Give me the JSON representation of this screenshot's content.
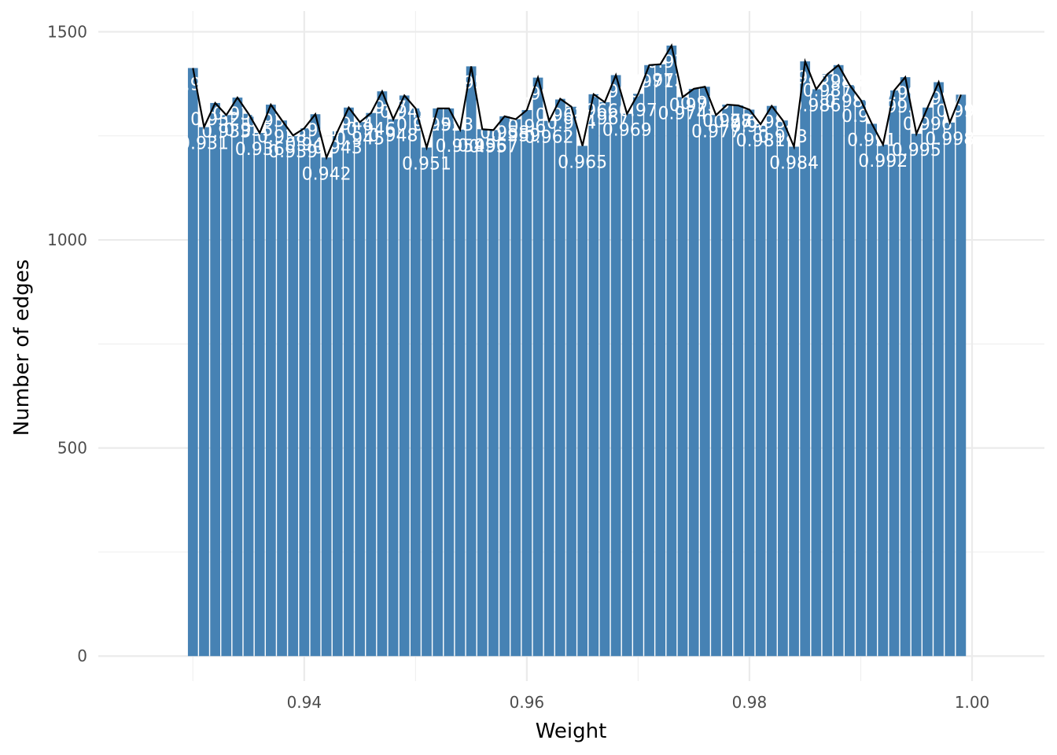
{
  "chart_data": {
    "type": "bar",
    "xlabel": "Weight",
    "ylabel": "Number of edges",
    "xlim": [
      0.9215,
      1.0065
    ],
    "ylim": [
      -60,
      1550
    ],
    "x_ticks": [
      0.94,
      0.96,
      0.98,
      1.0
    ],
    "x_tick_labels": [
      "0.94",
      "0.96",
      "0.98",
      "1.00"
    ],
    "y_ticks": [
      0,
      500,
      1000,
      1500
    ],
    "y_tick_labels": [
      "0",
      "500",
      "1000",
      "1500"
    ],
    "grid": true,
    "bar_color": "#4682b4",
    "line_color": "#000000",
    "x": [
      0.93,
      0.931,
      0.932,
      0.933,
      0.934,
      0.935,
      0.936,
      0.937,
      0.938,
      0.939,
      0.94,
      0.941,
      0.942,
      0.943,
      0.944,
      0.945,
      0.946,
      0.947,
      0.948,
      0.949,
      0.95,
      0.951,
      0.952,
      0.953,
      0.954,
      0.955,
      0.956,
      0.957,
      0.958,
      0.959,
      0.96,
      0.961,
      0.962,
      0.963,
      0.964,
      0.965,
      0.966,
      0.967,
      0.968,
      0.969,
      0.97,
      0.971,
      0.972,
      0.973,
      0.974,
      0.975,
      0.976,
      0.977,
      0.978,
      0.979,
      0.98,
      0.981,
      0.982,
      0.983,
      0.984,
      0.985,
      0.986,
      0.987,
      0.988,
      0.989,
      0.99,
      0.991,
      0.992,
      0.993,
      0.994,
      0.995,
      0.996,
      0.997,
      0.998,
      0.999
    ],
    "values": [
      1413,
      1271,
      1329,
      1300,
      1342,
      1303,
      1257,
      1325,
      1287,
      1251,
      1268,
      1302,
      1198,
      1261,
      1318,
      1283,
      1305,
      1357,
      1290,
      1347,
      1316,
      1222,
      1316,
      1316,
      1265,
      1417,
      1266,
      1264,
      1297,
      1290,
      1312,
      1390,
      1286,
      1339,
      1320,
      1226,
      1350,
      1331,
      1396,
      1303,
      1351,
      1420,
      1422,
      1467,
      1343,
      1363,
      1368,
      1300,
      1325,
      1323,
      1313,
      1278,
      1322,
      1287,
      1224,
      1429,
      1362,
      1398,
      1420,
      1372,
      1336,
      1279,
      1229,
      1359,
      1391,
      1255,
      1318,
      1379,
      1282,
      1349
    ],
    "labels": [
      "0.93",
      "0.931",
      "0.932",
      "0.933",
      "0.934",
      "0.935",
      "0.936",
      "0.937",
      "0.938",
      "0.939",
      "0.94",
      "0.941",
      "0.942",
      "0.943",
      "0.944",
      "0.945",
      "0.946",
      "0.947",
      "0.948",
      "0.949",
      "0.95",
      "0.951",
      "0.952",
      "0.953",
      "0.954",
      "0.955",
      "0.956",
      "0.957",
      "0.958",
      "0.959",
      "0.96",
      "0.961",
      "0.962",
      "0.963",
      "0.964",
      "0.965",
      "0.966",
      "0.967",
      "0.968",
      "0.969",
      "0.97",
      "0.971",
      "0.972",
      "0.973",
      "0.974",
      "0.975",
      "0.976",
      "0.977",
      "0.978",
      "0.979",
      "0.98",
      "0.981",
      "0.982",
      "0.983",
      "0.984",
      "0.985",
      "0.986",
      "0.987",
      "0.988",
      "0.989",
      "0.99",
      "0.991",
      "0.992",
      "0.993",
      "0.994",
      "0.995",
      "0.996",
      "0.997",
      "0.998",
      "0.999"
    ]
  }
}
